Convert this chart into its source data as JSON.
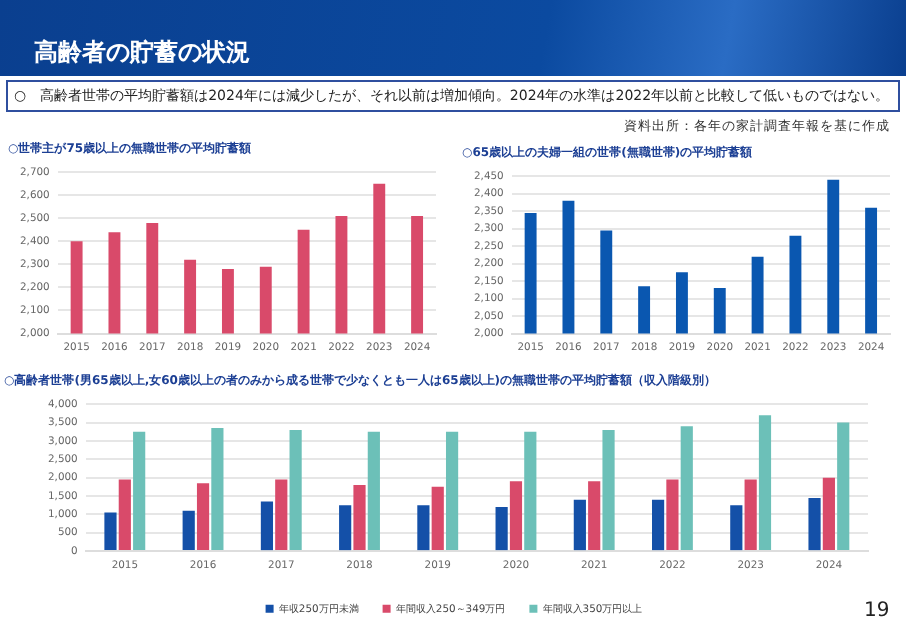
{
  "chart_data": [
    {
      "type": "other",
      "title": "高齢者の貯蓄の状況",
      "annotations": [
        "○　高齢者世帯の平均貯蓄額は2024年には減少したが、それ以前は増加傾向。2024年の水準は2022年以前と比較して低いものではない。",
        "資料出所：各年の家計調査年報を基に作成",
        "19"
      ]
    },
    {
      "type": "bar",
      "title": "○世帯主が75歳以上の無職世帯の平均貯蓄額",
      "categories": [
        "2015",
        "2016",
        "2017",
        "2018",
        "2019",
        "2020",
        "2021",
        "2022",
        "2023",
        "2024"
      ],
      "values": [
        2400,
        2440,
        2480,
        2320,
        2280,
        2290,
        2450,
        2510,
        2650,
        2510
      ],
      "color": "#d94a6a",
      "ylim": [
        2000,
        2700
      ],
      "yticks": [
        {
          "value": 2000,
          "label": "2,000"
        },
        {
          "value": 2100,
          "label": "2,100"
        },
        {
          "value": 2200,
          "label": "2,200"
        },
        {
          "value": 2300,
          "label": "2,300"
        },
        {
          "value": 2400,
          "label": "2,400"
        },
        {
          "value": 2500,
          "label": "2,500"
        },
        {
          "value": 2600,
          "label": "2,600"
        },
        {
          "value": 2700,
          "label": "2,700"
        }
      ],
      "grid": "y"
    },
    {
      "type": "bar",
      "title": "○65歳以上の夫婦一組の世帯(無職世帯)の平均貯蓄額",
      "categories": [
        "2015",
        "2016",
        "2017",
        "2018",
        "2019",
        "2020",
        "2021",
        "2022",
        "2023",
        "2024"
      ],
      "values": [
        2345,
        2380,
        2295,
        2135,
        2175,
        2130,
        2220,
        2280,
        2440,
        2360
      ],
      "color": "#0a57b0",
      "ylim": [
        2000,
        2450
      ],
      "yticks": [
        {
          "value": 2000,
          "label": "2,000"
        },
        {
          "value": 2050,
          "label": "2,050"
        },
        {
          "value": 2100,
          "label": "2,100"
        },
        {
          "value": 2150,
          "label": "2,150"
        },
        {
          "value": 2200,
          "label": "2,200"
        },
        {
          "value": 2250,
          "label": "2,250"
        },
        {
          "value": 2300,
          "label": "2,300"
        },
        {
          "value": 2350,
          "label": "2,350"
        },
        {
          "value": 2400,
          "label": "2,400"
        },
        {
          "value": 2450,
          "label": "2,450"
        }
      ],
      "grid": "y"
    },
    {
      "type": "bar",
      "title": "○高齢者世帯(男65歳以上,女60歳以上の者のみから成る世帯で少なくとも一人は65歳以上)の無職世帯の平均貯蓄額（収入階級別）",
      "categories": [
        "2015",
        "2016",
        "2017",
        "2018",
        "2019",
        "2020",
        "2021",
        "2022",
        "2023",
        "2024"
      ],
      "series": [
        {
          "name": "年収250万円未満",
          "color": "#1450a8",
          "values": [
            1050,
            1100,
            1350,
            1250,
            1250,
            1200,
            1400,
            1400,
            1250,
            1450
          ]
        },
        {
          "name": "年間収入250～349万円",
          "color": "#d94a6a",
          "values": [
            1950,
            1850,
            1950,
            1800,
            1750,
            1900,
            1900,
            1950,
            1950,
            2000
          ]
        },
        {
          "name": "年間収入350万円以上",
          "color": "#6cc0b8",
          "values": [
            3250,
            3350,
            3300,
            3250,
            3250,
            3250,
            3300,
            3400,
            3700,
            3500
          ]
        }
      ],
      "ylim": [
        0,
        4000
      ],
      "yticks": [
        0,
        {
          "value": 500,
          "label": "500"
        },
        {
          "value": 1000,
          "label": "1,000"
        },
        {
          "value": 1500,
          "label": "1,500"
        },
        {
          "value": 2000,
          "label": "2,000"
        },
        {
          "value": 2500,
          "label": "2,500"
        },
        {
          "value": 3000,
          "label": "3,000"
        },
        {
          "value": 3500,
          "label": "3,500"
        },
        {
          "value": 4000,
          "label": "4,000"
        }
      ],
      "grid": "y",
      "legend": "bottom"
    }
  ]
}
